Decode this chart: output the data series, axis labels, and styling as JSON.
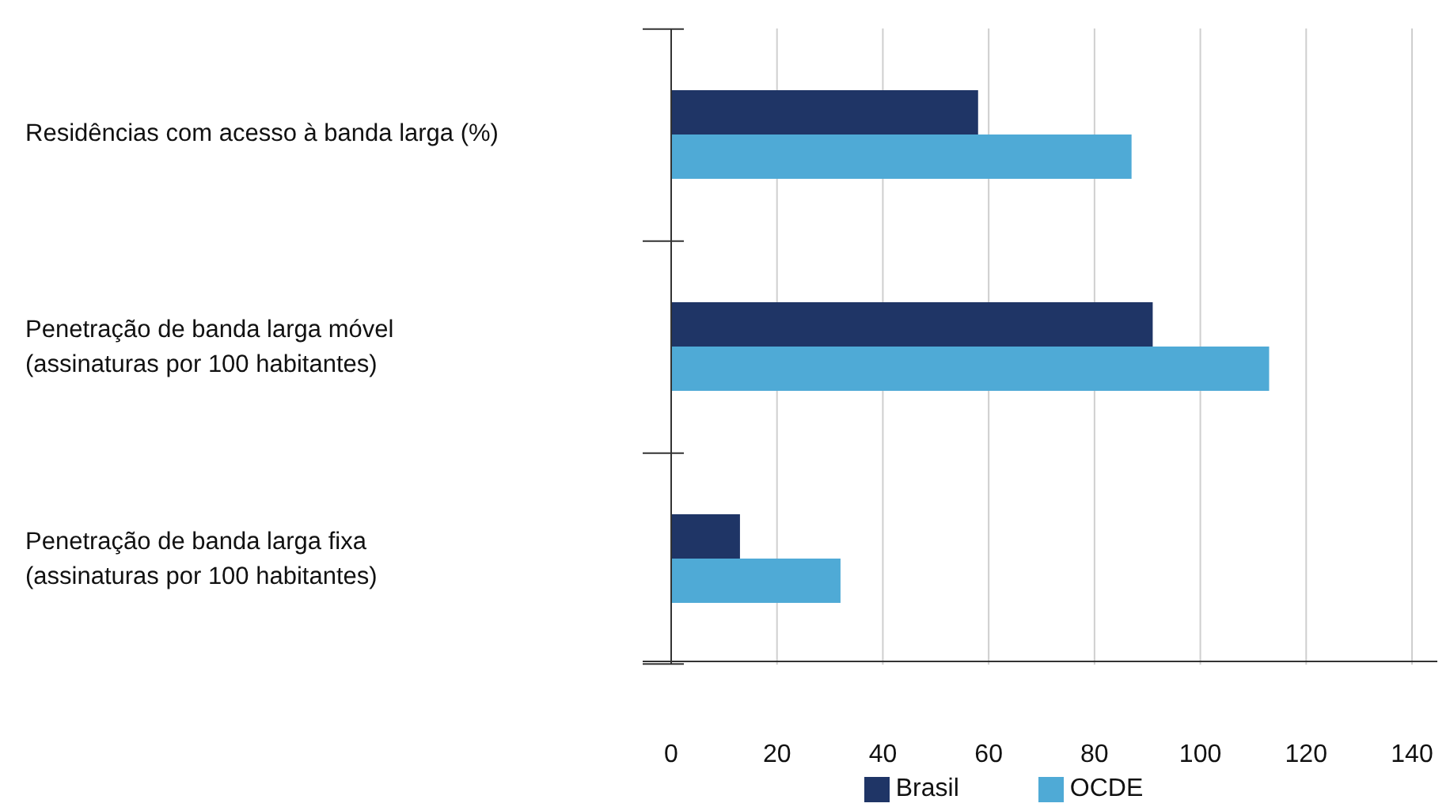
{
  "chart_data": {
    "type": "bar",
    "orientation": "horizontal",
    "categories": [
      "Residências com acesso à banda larga (%)",
      "Penetração de banda larga móvel\n(assinaturas por 100 habitantes)",
      "Penetração de banda larga fixa\n(assinaturas por 100 habitantes)"
    ],
    "series": [
      {
        "name": "Brasil",
        "color": "#1f3566",
        "values": [
          58,
          91,
          13
        ]
      },
      {
        "name": "OCDE",
        "color": "#4faad6",
        "values": [
          87,
          113,
          32
        ]
      }
    ],
    "xlim": [
      0,
      140
    ],
    "xticks": [
      0,
      20,
      40,
      60,
      80,
      100,
      120,
      140
    ],
    "grid": "x",
    "legend": "bottom"
  }
}
